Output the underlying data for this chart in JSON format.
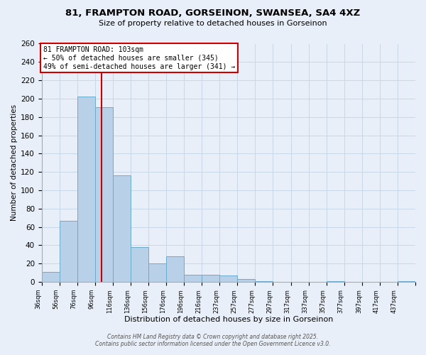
{
  "title": "81, FRAMPTON ROAD, GORSEINON, SWANSEA, SA4 4XZ",
  "subtitle": "Size of property relative to detached houses in Gorseinon",
  "bar_values": [
    11,
    67,
    202,
    191,
    116,
    38,
    20,
    28,
    8,
    8,
    7,
    3,
    1,
    0,
    0,
    0,
    1,
    0,
    0,
    0,
    1
  ],
  "x_tick_labels": [
    "36sqm",
    "56sqm",
    "76sqm",
    "96sqm",
    "116sqm",
    "136sqm",
    "156sqm",
    "176sqm",
    "196sqm",
    "216sqm",
    "237sqm",
    "257sqm",
    "277sqm",
    "297sqm",
    "317sqm",
    "337sqm",
    "357sqm",
    "377sqm",
    "397sqm",
    "417sqm",
    "437sqm"
  ],
  "bar_color": "#b8d0e8",
  "bar_edge_color": "#6aabcc",
  "xlabel": "Distribution of detached houses by size in Gorseinon",
  "ylabel": "Number of detached properties",
  "ylim": [
    0,
    260
  ],
  "yticks": [
    0,
    20,
    40,
    60,
    80,
    100,
    120,
    140,
    160,
    180,
    200,
    220,
    240,
    260
  ],
  "vline_color": "#cc0000",
  "annotation_title": "81 FRAMPTON ROAD: 103sqm",
  "annotation_line1": "← 50% of detached houses are smaller (345)",
  "annotation_line2": "49% of semi-detached houses are larger (341) →",
  "annotation_box_color": "#ffffff",
  "annotation_box_edge": "#cc0000",
  "grid_color": "#c8d8e8",
  "bg_color": "#e8eff8",
  "footer1": "Contains HM Land Registry data © Crown copyright and database right 2025.",
  "footer2": "Contains public sector information licensed under the Open Government Licence v3.0."
}
